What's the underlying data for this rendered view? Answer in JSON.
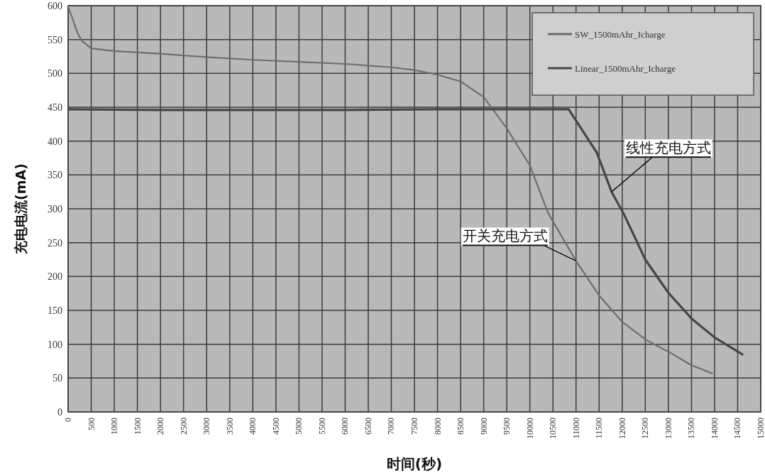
{
  "chart_data": {
    "type": "line",
    "xlabel": "时间(秒)",
    "ylabel": "充电电流(mA)",
    "xlim": [
      0,
      15000
    ],
    "xticks": [
      0,
      500,
      1000,
      1500,
      2000,
      2500,
      3000,
      3500,
      4000,
      4500,
      5000,
      5500,
      6000,
      6500,
      7000,
      7500,
      8000,
      8500,
      9000,
      9500,
      10000,
      10500,
      11000,
      11500,
      12000,
      12500,
      13000,
      13500,
      14000,
      14500,
      15000
    ],
    "ylim": [
      0,
      600
    ],
    "yticks": [
      0,
      50,
      100,
      150,
      200,
      250,
      300,
      350,
      400,
      450,
      500,
      550,
      600
    ],
    "grid": true,
    "legend": "top right",
    "marker": "none",
    "line_style": "solid",
    "series": [
      {
        "name": "SW_1500mAhr_Icharge",
        "color": "#6e6e6e",
        "x": [
          0,
          100,
          200,
          300,
          500,
          1000,
          2000,
          3000,
          4000,
          5000,
          6000,
          7000,
          7500,
          8000,
          8500,
          9000,
          9500,
          10000,
          10400,
          11000,
          11500,
          12000,
          12500,
          13000,
          13500,
          13950
        ],
        "values": [
          598,
          580,
          560,
          548,
          537,
          533,
          529,
          524,
          520,
          517,
          514,
          509,
          505,
          498,
          488,
          465,
          419,
          364,
          293,
          223,
          172,
          133,
          107,
          89,
          69,
          57
        ]
      },
      {
        "name": "Linear_1500mAhr_Icharge",
        "color": "#464646",
        "x": [
          0,
          2000,
          4000,
          6000,
          8000,
          10000,
          10840,
          11450,
          11770,
          12030,
          12500,
          13000,
          13500,
          14000,
          14600
        ],
        "values": [
          447,
          446,
          446,
          446,
          447,
          447,
          447,
          383,
          325,
          293,
          225,
          176,
          138,
          110,
          85
        ]
      }
    ],
    "annotations": [
      {
        "text": "线性充电方式",
        "x": 11770,
        "y": 325
      },
      {
        "text": "开关充电方式",
        "x": 11000,
        "y": 223
      }
    ]
  }
}
